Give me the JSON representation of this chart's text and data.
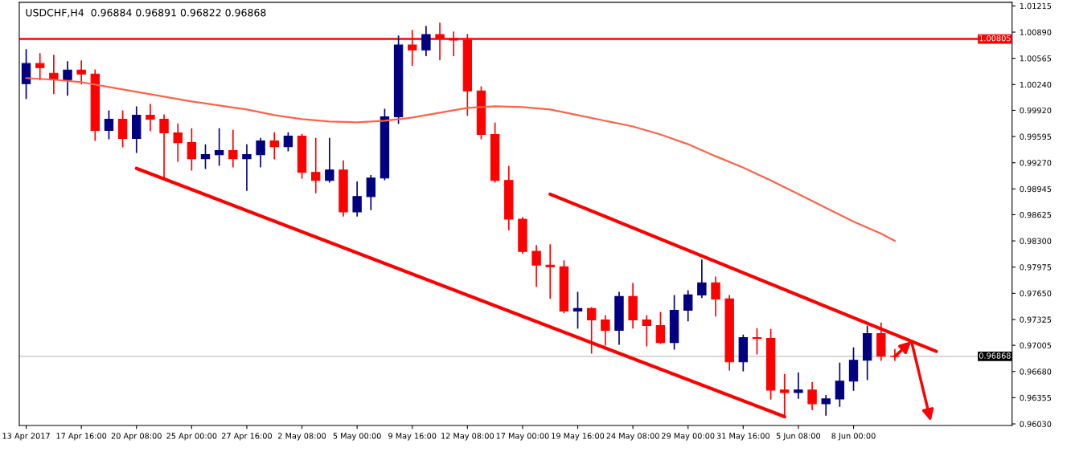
{
  "chart_data": {
    "type": "candlestick",
    "title": "USDCHF,H4  0.96884 0.96891 0.96822 0.96868",
    "categories": [
      "13 Apr 2017",
      null,
      null,
      null,
      "17 Apr 16:00",
      null,
      null,
      null,
      "20 Apr 08:00",
      null,
      null,
      null,
      "25 Apr 00:00",
      null,
      null,
      null,
      "27 Apr 16:00",
      null,
      null,
      null,
      "2 May 08:00",
      null,
      null,
      null,
      "5 May 00:00",
      null,
      null,
      null,
      "9 May 16:00",
      null,
      null,
      null,
      "12 May 08:00",
      null,
      null,
      null,
      "17 May 00:00",
      null,
      null,
      null,
      "19 May 16:00",
      null,
      null,
      null,
      "24 May 08:00",
      null,
      null,
      null,
      "29 May 00:00",
      null,
      null,
      null,
      "31 May 16:00",
      null,
      null,
      null,
      "5 Jun 08:00",
      null,
      null,
      null,
      "8 Jun 00:00",
      null,
      null,
      null,
      null,
      null,
      null,
      null,
      null,
      null,
      null,
      null
    ],
    "ohlc": [
      [
        1.0025,
        1.0067,
        1.0007,
        1.005
      ],
      [
        1.005,
        1.0062,
        1.003,
        1.0045
      ],
      [
        1.0038,
        1.006,
        1.0013,
        1.003
      ],
      [
        1.003,
        1.0052,
        1.0011,
        1.0042
      ],
      [
        1.0042,
        1.0053,
        1.0025,
        1.0037
      ],
      [
        1.0037,
        1.0042,
        0.9955,
        0.9967
      ],
      [
        0.9967,
        0.9991,
        0.9957,
        0.9981
      ],
      [
        0.9981,
        0.9991,
        0.9947,
        0.9957
      ],
      [
        0.9957,
        0.9996,
        0.994,
        0.9986
      ],
      [
        0.9986,
        0.9999,
        0.9967,
        0.9981
      ],
      [
        0.9981,
        0.9986,
        0.9906,
        0.9964
      ],
      [
        0.9964,
        0.9975,
        0.9929,
        0.9952
      ],
      [
        0.9952,
        0.9969,
        0.9918,
        0.9932
      ],
      [
        0.9932,
        0.9949,
        0.992,
        0.9937
      ],
      [
        0.9937,
        0.9969,
        0.9924,
        0.9942
      ],
      [
        0.9942,
        0.9967,
        0.9922,
        0.9932
      ],
      [
        0.9932,
        0.9949,
        0.9893,
        0.9937
      ],
      [
        0.9937,
        0.9957,
        0.9922,
        0.9954
      ],
      [
        0.9954,
        0.9964,
        0.9932,
        0.9947
      ],
      [
        0.9947,
        0.9964,
        0.9942,
        0.996
      ],
      [
        0.996,
        0.9962,
        0.9908,
        0.9915
      ],
      [
        0.9915,
        0.9957,
        0.989,
        0.9905
      ],
      [
        0.9905,
        0.9957,
        0.9903,
        0.9918
      ],
      [
        0.9918,
        0.9929,
        0.9861,
        0.9866
      ],
      [
        0.9866,
        0.9903,
        0.9861,
        0.9885
      ],
      [
        0.9885,
        0.9911,
        0.9869,
        0.9908
      ],
      [
        0.9908,
        0.9993,
        0.9906,
        0.9984
      ],
      [
        0.9984,
        1.0084,
        0.9976,
        1.0073
      ],
      [
        1.0073,
        1.0091,
        1.0048,
        1.0067
      ],
      [
        1.0067,
        1.0096,
        1.006,
        1.0086
      ],
      [
        1.0086,
        1.01,
        1.0055,
        1.0081
      ],
      [
        1.0081,
        1.0089,
        1.006,
        1.0079
      ],
      [
        1.0079,
        1.0086,
        0.9986,
        1.0016
      ],
      [
        1.0016,
        1.0021,
        0.9957,
        0.9962
      ],
      [
        0.9962,
        0.9976,
        0.9903,
        0.9905
      ],
      [
        0.9905,
        0.9922,
        0.9844,
        0.9857
      ],
      [
        0.9857,
        0.9859,
        0.9815,
        0.9817
      ],
      [
        0.9817,
        0.9824,
        0.9774,
        0.98
      ],
      [
        0.98,
        0.9825,
        0.9759,
        0.9798
      ],
      [
        0.9798,
        0.9805,
        0.9741,
        0.9743
      ],
      [
        0.9743,
        0.9766,
        0.9722,
        0.9746
      ],
      [
        0.9746,
        0.9747,
        0.9691,
        0.9732
      ],
      [
        0.9732,
        0.9737,
        0.9701,
        0.9719
      ],
      [
        0.9719,
        0.9766,
        0.9702,
        0.9761
      ],
      [
        0.9761,
        0.9777,
        0.9722,
        0.9732
      ],
      [
        0.9732,
        0.9737,
        0.97,
        0.9725
      ],
      [
        0.9725,
        0.9741,
        0.9703,
        0.9704
      ],
      [
        0.9704,
        0.9762,
        0.9696,
        0.9744
      ],
      [
        0.9744,
        0.9768,
        0.9731,
        0.9763
      ],
      [
        0.9763,
        0.9806,
        0.976,
        0.9778
      ],
      [
        0.9778,
        0.9785,
        0.9737,
        0.9758
      ],
      [
        0.9758,
        0.9762,
        0.967,
        0.968
      ],
      [
        0.968,
        0.9713,
        0.9669,
        0.971
      ],
      [
        0.971,
        0.9721,
        0.969,
        0.9709
      ],
      [
        0.9709,
        0.972,
        0.9634,
        0.9645
      ],
      [
        0.9645,
        0.9664,
        0.9614,
        0.9642
      ],
      [
        0.9642,
        0.9666,
        0.9635,
        0.9645
      ],
      [
        0.9645,
        0.9654,
        0.9621,
        0.9628
      ],
      [
        0.9628,
        0.9638,
        0.9614,
        0.9634
      ],
      [
        0.9634,
        0.9678,
        0.9625,
        0.9656
      ],
      [
        0.9656,
        0.9697,
        0.9645,
        0.9682
      ],
      [
        0.9682,
        0.9724,
        0.9658,
        0.9715
      ],
      [
        0.9715,
        0.9728,
        0.9682,
        0.9687
      ],
      [
        0.9687,
        0.9695,
        0.9682,
        0.96868
      ],
      null,
      null,
      null,
      null,
      null,
      null,
      null,
      null
    ],
    "colors": [
      "#000080",
      "#ff0000",
      "#ff0000",
      "#000080",
      "#ff0000",
      "#ff0000",
      "#000080",
      "#ff0000",
      "#000080",
      "#ff0000",
      "#ff0000",
      "#ff0000",
      "#ff0000",
      "#000080",
      "#000080",
      "#ff0000",
      "#000080",
      "#000080",
      "#ff0000",
      "#000080",
      "#ff0000",
      "#ff0000",
      "#000080",
      "#ff0000",
      "#000080",
      "#000080",
      "#000080",
      "#000080",
      "#ff0000",
      "#000080",
      "#ff0000",
      "#ff0000",
      "#ff0000",
      "#ff0000",
      "#ff0000",
      "#ff0000",
      "#ff0000",
      "#ff0000",
      "#ff0000",
      "#ff0000",
      "#000080",
      "#ff0000",
      "#ff0000",
      "#000080",
      "#ff0000",
      "#ff0000",
      "#ff0000",
      "#000080",
      "#000080",
      "#000080",
      "#ff0000",
      "#ff0000",
      "#000080",
      "#ff0000",
      "#ff0000",
      "#ff0000",
      "#000080",
      "#ff0000",
      "#000080",
      "#000080",
      "#000080",
      "#000080",
      "#ff0000",
      "#ff0000",
      null,
      null,
      null,
      null,
      null,
      null,
      null,
      null
    ],
    "series": [
      {
        "type": "line",
        "color": "#ff6347",
        "values": [
          1.0032,
          null,
          1.003,
          null,
          1.0027,
          null,
          1.0021,
          null,
          1.0015,
          null,
          1.0009,
          null,
          1.0003,
          null,
          0.9998,
          null,
          0.9993,
          null,
          0.9986,
          null,
          0.9981,
          null,
          0.9978,
          null,
          0.9977,
          null,
          0.9979,
          null,
          0.9983,
          null,
          0.9989,
          null,
          0.9995,
          null,
          0.9997,
          null,
          0.9996,
          null,
          0.9993,
          null,
          0.9986,
          null,
          0.9979,
          null,
          0.9972,
          null,
          0.9962,
          null,
          0.995,
          null,
          0.9935,
          null,
          0.9921,
          null,
          0.9905,
          null,
          0.9888,
          null,
          0.9871,
          null,
          0.9854,
          null,
          0.9839,
          0.983,
          null,
          null,
          null,
          null,
          null,
          null,
          null,
          null
        ]
      },
      {
        "type": "line",
        "color": "#ff0000",
        "values": [
          null,
          null,
          null,
          null,
          null,
          null,
          null,
          null,
          0.992,
          null,
          null,
          null,
          null,
          null,
          null,
          null,
          null,
          null,
          null,
          null,
          null,
          null,
          null,
          null,
          null,
          null,
          null,
          null,
          null,
          null,
          null,
          null,
          null,
          null,
          null,
          null,
          null,
          null,
          null,
          null,
          null,
          null,
          null,
          null,
          null,
          null,
          null,
          null,
          null,
          null,
          null,
          null,
          null,
          null,
          null,
          0.9612,
          null,
          null,
          null,
          null,
          null,
          null,
          null,
          null,
          null,
          null,
          null,
          null,
          null,
          null,
          null,
          null
        ]
      },
      {
        "type": "line",
        "color": "#ff0000",
        "values": [
          null,
          null,
          null,
          null,
          null,
          null,
          null,
          null,
          null,
          null,
          null,
          null,
          null,
          null,
          null,
          null,
          null,
          null,
          null,
          null,
          null,
          null,
          null,
          null,
          null,
          null,
          null,
          null,
          null,
          null,
          null,
          null,
          null,
          null,
          null,
          null,
          null,
          null,
          0.9888,
          null,
          null,
          null,
          null,
          null,
          null,
          null,
          null,
          null,
          null,
          null,
          null,
          null,
          null,
          null,
          null,
          null,
          null,
          null,
          null,
          null,
          null,
          null,
          null,
          null,
          null,
          null,
          0.9693,
          null,
          null,
          null,
          null,
          null
        ]
      }
    ],
    "ylim": [
      0.9601,
      1.0126
    ],
    "yticks": [
      {
        "value": 0.9603,
        "label": "0.96030"
      },
      {
        "value": 0.96355,
        "label": "0.96355"
      },
      {
        "value": 0.9668,
        "label": "0.96680"
      },
      {
        "value": 0.97005,
        "label": "0.97005"
      },
      {
        "value": 0.97325,
        "label": "0.97325"
      },
      {
        "value": 0.9765,
        "label": "0.97650"
      },
      {
        "value": 0.97975,
        "label": "0.97975"
      },
      {
        "value": 0.983,
        "label": "0.98300"
      },
      {
        "value": 0.98625,
        "label": "0.98625"
      },
      {
        "value": 0.98945,
        "label": "0.98945"
      },
      {
        "value": 0.9927,
        "label": "0.99270"
      },
      {
        "value": 0.99595,
        "label": "0.99595"
      },
      {
        "value": 0.9992,
        "label": "0.99920"
      },
      {
        "value": 1.0024,
        "label": "1.00240"
      },
      {
        "value": 1.00565,
        "label": "1.00565"
      },
      {
        "value": 1.0089,
        "label": "1.00890"
      },
      {
        "value": 1.01215,
        "label": "1.01215"
      }
    ],
    "ref_lines": [
      {
        "axis": "y",
        "value": 1.00805,
        "label": "1.00805",
        "color": "#ff0000"
      },
      {
        "axis": "y",
        "value": 0.96868,
        "label": "0.96868",
        "color": "#c0c0c0"
      }
    ],
    "grid": false
  }
}
